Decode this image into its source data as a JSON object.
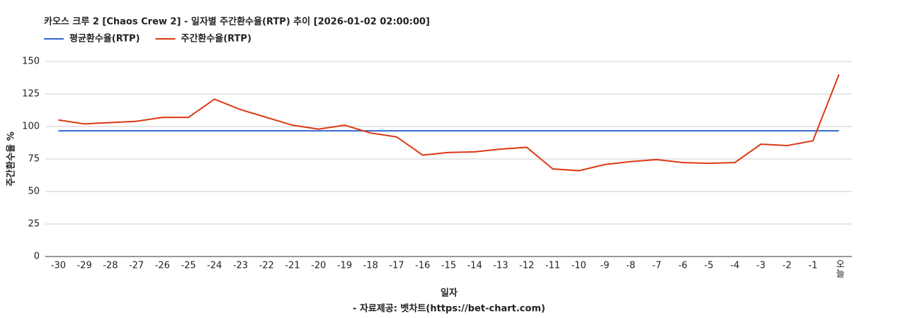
{
  "chart_data": {
    "type": "line",
    "title": "카오스 크루 2 [Chaos Crew 2] - 일자별 주간환수율(RTP) 추이 [2026-01-02 02:00:00]",
    "x_label": "일자",
    "y_label": "주간환수율 %",
    "caption": "- 자료제공: 벳차트(https://bet-chart.com)",
    "categories": [
      "-30",
      "-29",
      "-28",
      "-27",
      "-26",
      "-25",
      "-24",
      "-23",
      "-22",
      "-21",
      "-20",
      "-19",
      "-18",
      "-17",
      "-16",
      "-15",
      "-14",
      "-13",
      "-12",
      "-11",
      "-10",
      "-9",
      "-8",
      "-7",
      "-6",
      "-5",
      "-4",
      "-3",
      "-2",
      "-1",
      "오늘"
    ],
    "series": [
      {
        "name": "평균환수율(RTP)",
        "color": "#3366cc",
        "values": [
          96.7,
          96.7,
          96.7,
          96.7,
          96.7,
          96.7,
          96.7,
          96.7,
          96.7,
          96.7,
          96.7,
          96.7,
          96.7,
          96.7,
          96.7,
          96.7,
          96.7,
          96.7,
          96.7,
          96.7,
          96.7,
          96.7,
          96.7,
          96.7,
          96.7,
          96.7,
          96.7,
          96.7,
          96.7,
          96.7,
          96.7
        ]
      },
      {
        "name": "주간환수율(RTP)",
        "color": "#dc3912",
        "values": [
          105,
          102,
          103,
          104,
          107,
          107,
          121,
          113,
          107,
          101,
          98,
          101,
          95,
          92,
          78,
          80,
          80.5,
          82.6,
          84,
          67.4,
          66,
          70.7,
          73,
          74.5,
          72.3,
          71.7,
          72.3,
          86.4,
          85.3,
          89,
          140
        ]
      }
    ],
    "ylim": [
      0,
      150
    ],
    "yticks": [
      0,
      25,
      50,
      75,
      100,
      125,
      150
    ],
    "grid": true,
    "legend": "top"
  }
}
